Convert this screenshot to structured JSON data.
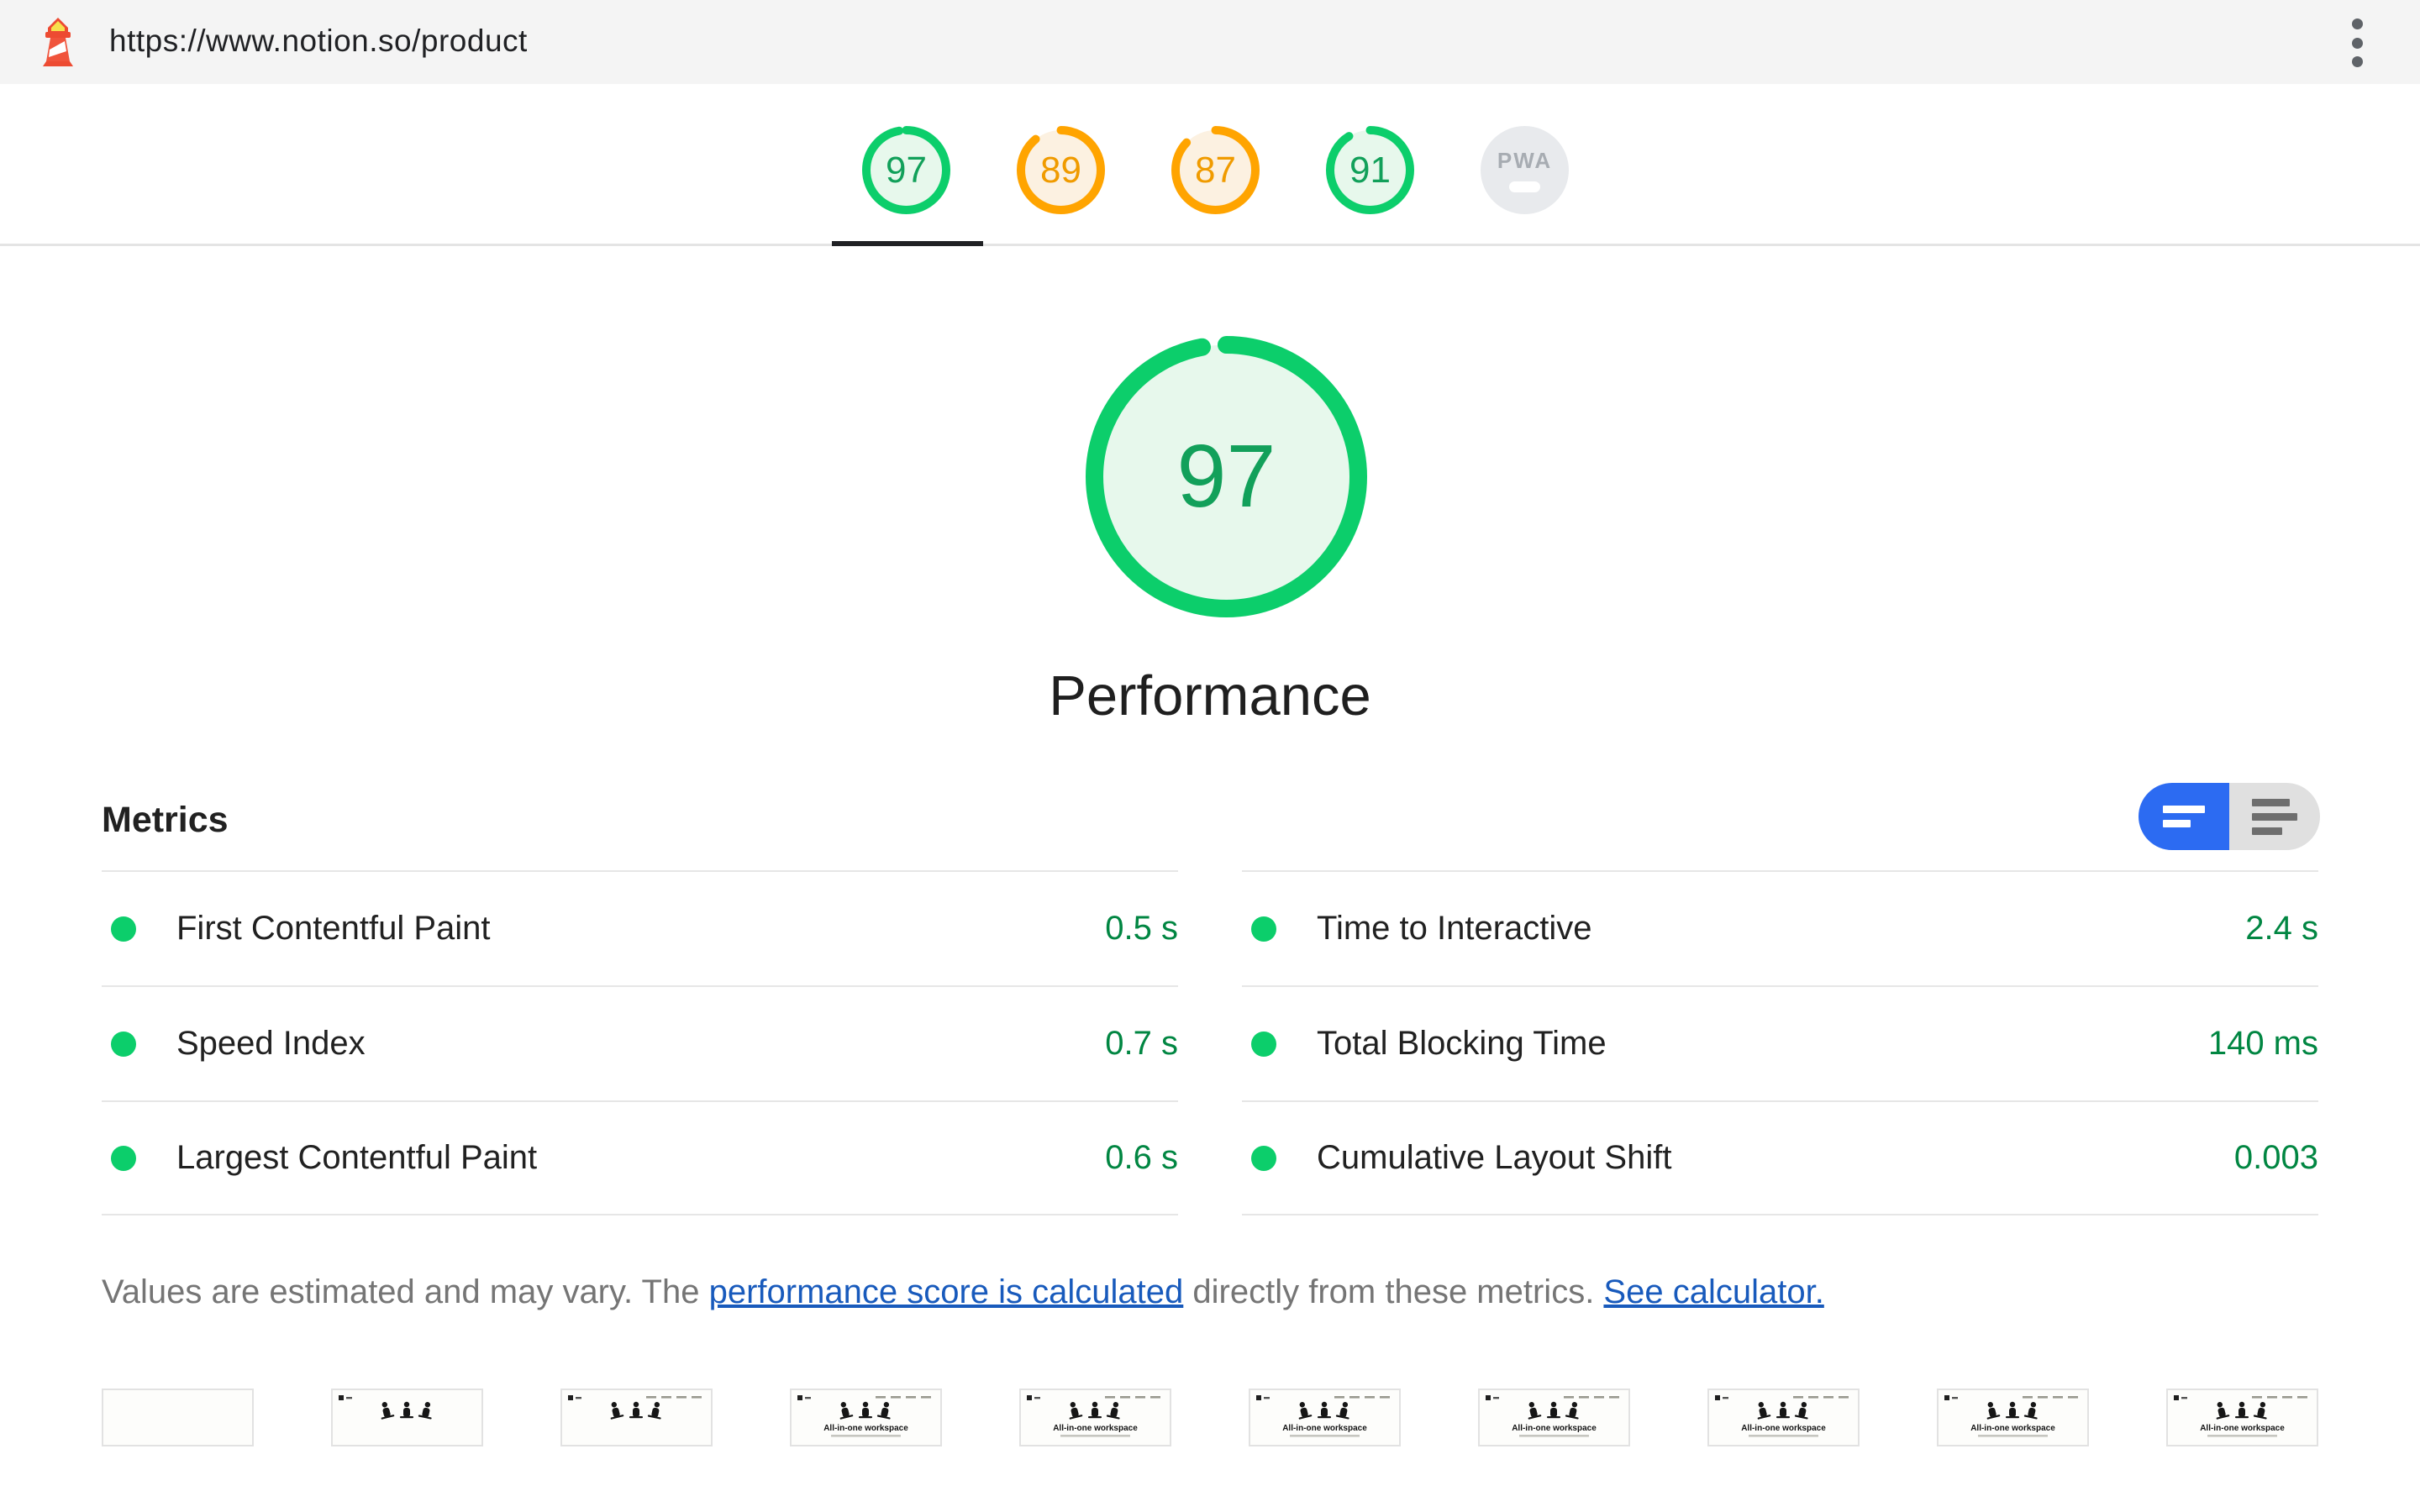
{
  "header": {
    "url": "https://www.notion.so/product",
    "logo_icon": "lighthouse-icon",
    "menu_icon": "kebab-menu-icon"
  },
  "nav": {
    "items": [
      {
        "score": "97",
        "level": "good",
        "active": true
      },
      {
        "score": "89",
        "level": "average"
      },
      {
        "score": "87",
        "level": "average"
      },
      {
        "score": "91",
        "level": "good"
      },
      {
        "badge": "PWA",
        "level": "na"
      }
    ]
  },
  "hero": {
    "score": "97",
    "level": "good",
    "title": "Performance"
  },
  "metrics": {
    "heading": "Metrics",
    "toggle": {
      "active_icon": "collapsed-view-icon",
      "inactive_icon": "expanded-view-icon"
    },
    "columns": [
      [
        {
          "label": "First Contentful Paint",
          "value": "0.5 s",
          "rating": "good"
        },
        {
          "label": "Speed Index",
          "value": "0.7 s",
          "rating": "good"
        },
        {
          "label": "Largest Contentful Paint",
          "value": "0.6 s",
          "rating": "good"
        }
      ],
      [
        {
          "label": "Time to Interactive",
          "value": "2.4 s",
          "rating": "good"
        },
        {
          "label": "Total Blocking Time",
          "value": "140 ms",
          "rating": "good"
        },
        {
          "label": "Cumulative Layout Shift",
          "value": "0.003",
          "rating": "good"
        }
      ]
    ],
    "footnote": [
      {
        "text": "Values are estimated and may vary. The "
      },
      {
        "text": "performance score is calculated",
        "link": true
      },
      {
        "text": " directly from these metrics. "
      },
      {
        "text": "See calculator.",
        "link": true
      }
    ]
  },
  "filmstrip": {
    "headline": "All-in-one workspace",
    "frames": [
      {
        "stage": 0
      },
      {
        "stage": 1
      },
      {
        "stage": 2
      },
      {
        "stage": 3
      },
      {
        "stage": 3
      },
      {
        "stage": 3
      },
      {
        "stage": 3
      },
      {
        "stage": 3
      },
      {
        "stage": 3
      },
      {
        "stage": 3
      }
    ]
  },
  "colors": {
    "good": "#0cce6b",
    "good_fill": "#e7f8ec",
    "good_text": "#12a05a",
    "average": "#ffa400",
    "average_fill": "#fcf1e1",
    "average_text": "#f09b00",
    "value_green": "#018642",
    "link_blue": "#185abc",
    "accent_blue": "#2c6bf2",
    "muted_gray": "#757575",
    "border": "#e6e6e6",
    "header_bg": "#f4f4f4",
    "badge_bg": "#e8eaed",
    "badge_text": "#a7acb2",
    "text_dark": "#212121"
  }
}
